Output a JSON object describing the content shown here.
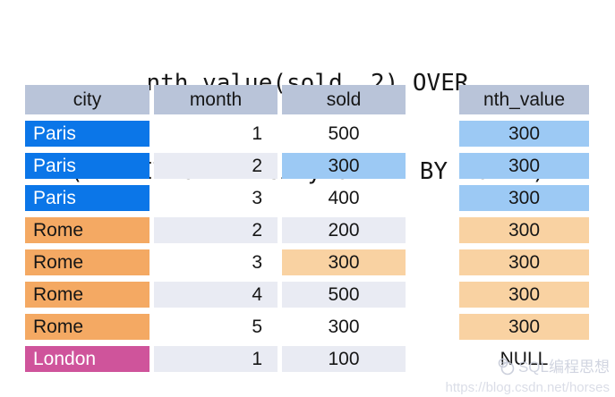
{
  "title": {
    "line1": "nth_value(sold, 2) OVER",
    "line2": "(PARTITION BY city ORDER BY month)"
  },
  "table": {
    "columns": [
      "city",
      "month",
      "sold"
    ],
    "result_column": "nth_value",
    "rows": [
      {
        "city": "Paris",
        "month": "1",
        "sold": "500",
        "nth_value": "300",
        "city_style": "paris",
        "nth_style": "blue",
        "sold_highlight": false,
        "alt": false
      },
      {
        "city": "Paris",
        "month": "2",
        "sold": "300",
        "nth_value": "300",
        "city_style": "paris",
        "nth_style": "blue",
        "sold_highlight": true,
        "alt": true
      },
      {
        "city": "Paris",
        "month": "3",
        "sold": "400",
        "nth_value": "300",
        "city_style": "paris",
        "nth_style": "blue",
        "sold_highlight": false,
        "alt": false
      },
      {
        "city": "Rome",
        "month": "2",
        "sold": "200",
        "nth_value": "300",
        "city_style": "rome",
        "nth_style": "orange",
        "sold_highlight": false,
        "alt": true
      },
      {
        "city": "Rome",
        "month": "3",
        "sold": "300",
        "nth_value": "300",
        "city_style": "rome",
        "nth_style": "orange",
        "sold_highlight": true,
        "alt": false
      },
      {
        "city": "Rome",
        "month": "4",
        "sold": "500",
        "nth_value": "300",
        "city_style": "rome",
        "nth_style": "orange",
        "sold_highlight": false,
        "alt": true
      },
      {
        "city": "Rome",
        "month": "5",
        "sold": "300",
        "nth_value": "300",
        "city_style": "rome",
        "nth_style": "orange",
        "sold_highlight": false,
        "alt": false
      },
      {
        "city": "London",
        "month": "1",
        "sold": "100",
        "nth_value": "NULL",
        "city_style": "london",
        "nth_style": "none",
        "sold_highlight": false,
        "alt": true
      }
    ]
  },
  "colors": {
    "header_bg": "#b9c4d9",
    "alt_row_bg": "#e9ebf3",
    "paris_bg": "#0b76e8",
    "rome_bg": "#f4a963",
    "london_bg": "#cf549b",
    "highlight_blue": "#9cc9f4",
    "highlight_orange": "#f9d2a2",
    "watermark_text": "#ccd0dd"
  },
  "watermark": {
    "logo": "csdn-logo",
    "brand": "SQL编程思想",
    "url": "https://blog.csdn.net/horses"
  }
}
